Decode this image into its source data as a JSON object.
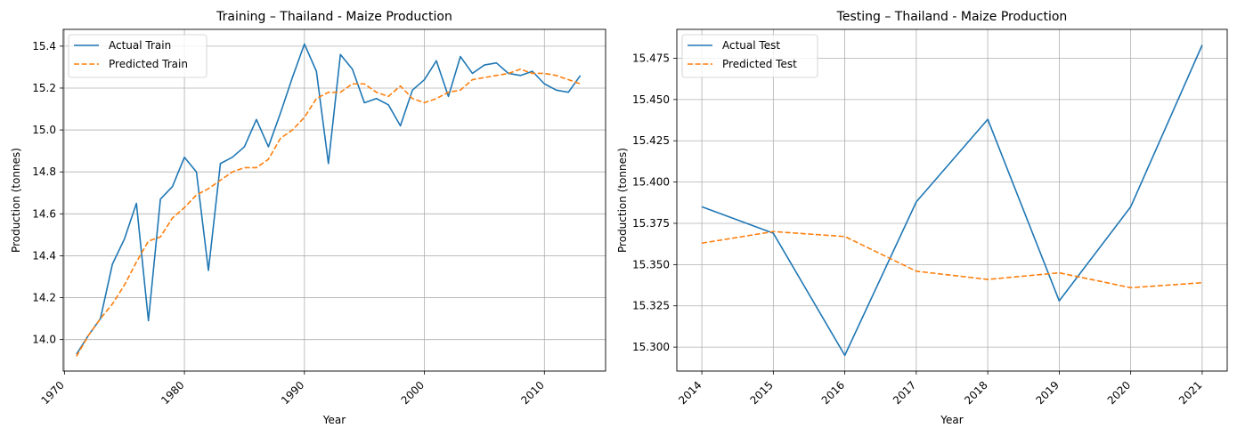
{
  "chart_data": [
    {
      "type": "line",
      "title": "Training – Thailand - Maize Production",
      "xlabel": "Year",
      "ylabel": "Production (tonnes)",
      "xlim": [
        1969.9,
        2015.1
      ],
      "ylim": [
        13.85,
        15.48
      ],
      "xticks": [
        1970,
        1980,
        1990,
        2000,
        2010
      ],
      "xtick_labels": [
        "1970",
        "1980",
        "1990",
        "2000",
        "2010"
      ],
      "yticks": [
        14.0,
        14.2,
        14.4,
        14.6,
        14.8,
        15.0,
        15.2,
        15.4
      ],
      "ytick_labels": [
        "14.0",
        "14.2",
        "14.4",
        "14.6",
        "14.8",
        "15.0",
        "15.2",
        "15.4"
      ],
      "grid": true,
      "legend_position": "top-left",
      "x": [
        1971,
        1972,
        1973,
        1974,
        1975,
        1976,
        1977,
        1978,
        1979,
        1980,
        1981,
        1982,
        1983,
        1984,
        1985,
        1986,
        1987,
        1988,
        1989,
        1990,
        1991,
        1992,
        1993,
        1994,
        1995,
        1996,
        1997,
        1998,
        1999,
        2000,
        2001,
        2002,
        2003,
        2004,
        2005,
        2006,
        2007,
        2008,
        2009,
        2010,
        2011,
        2012,
        2013
      ],
      "series": [
        {
          "name": "Actual Train",
          "color": "#1f77b4",
          "style": "solid",
          "values": [
            13.93,
            14.02,
            14.1,
            14.36,
            14.48,
            14.65,
            14.09,
            14.67,
            14.73,
            14.87,
            14.8,
            14.33,
            14.84,
            14.87,
            14.92,
            15.05,
            14.92,
            15.08,
            15.25,
            15.41,
            15.28,
            14.84,
            15.36,
            15.29,
            15.13,
            15.15,
            15.12,
            15.02,
            15.19,
            15.24,
            15.33,
            15.16,
            15.35,
            15.27,
            15.31,
            15.32,
            15.27,
            15.26,
            15.28,
            15.22,
            15.19,
            15.18,
            15.26
          ]
        },
        {
          "name": "Predicted Train",
          "color": "#ff7f0e",
          "style": "dashed",
          "values": [
            13.92,
            14.02,
            14.1,
            14.17,
            14.26,
            14.37,
            14.47,
            14.49,
            14.58,
            14.63,
            14.69,
            14.72,
            14.76,
            14.8,
            14.82,
            14.82,
            14.86,
            14.96,
            15.0,
            15.06,
            15.15,
            15.18,
            15.18,
            15.22,
            15.22,
            15.18,
            15.16,
            15.21,
            15.15,
            15.13,
            15.15,
            15.18,
            15.19,
            15.24,
            15.25,
            15.26,
            15.27,
            15.29,
            15.27,
            15.27,
            15.26,
            15.24,
            15.22
          ]
        }
      ]
    },
    {
      "type": "line",
      "title": "Testing – Thailand - Maize Production",
      "xlabel": "Year",
      "ylabel": "Production (tonnes)",
      "xlim": [
        2013.65,
        2021.35
      ],
      "ylim": [
        15.2855,
        15.4925
      ],
      "categories": [
        "2014",
        "2015",
        "2016",
        "2017",
        "2018",
        "2019",
        "2020",
        "2021"
      ],
      "yticks": [
        15.3,
        15.325,
        15.35,
        15.375,
        15.4,
        15.425,
        15.45,
        15.475
      ],
      "ytick_labels": [
        "15.300",
        "15.325",
        "15.350",
        "15.375",
        "15.400",
        "15.425",
        "15.450",
        "15.475"
      ],
      "grid": true,
      "legend_position": "top-left",
      "x": [
        2014,
        2015,
        2016,
        2017,
        2018,
        2019,
        2020,
        2021
      ],
      "series": [
        {
          "name": "Actual Test",
          "color": "#1f77b4",
          "style": "solid",
          "values": [
            15.385,
            15.369,
            15.295,
            15.388,
            15.438,
            15.328,
            15.385,
            15.483
          ]
        },
        {
          "name": "Predicted Test",
          "color": "#ff7f0e",
          "style": "dashed",
          "values": [
            15.363,
            15.37,
            15.367,
            15.346,
            15.341,
            15.345,
            15.336,
            15.339
          ]
        }
      ]
    }
  ]
}
